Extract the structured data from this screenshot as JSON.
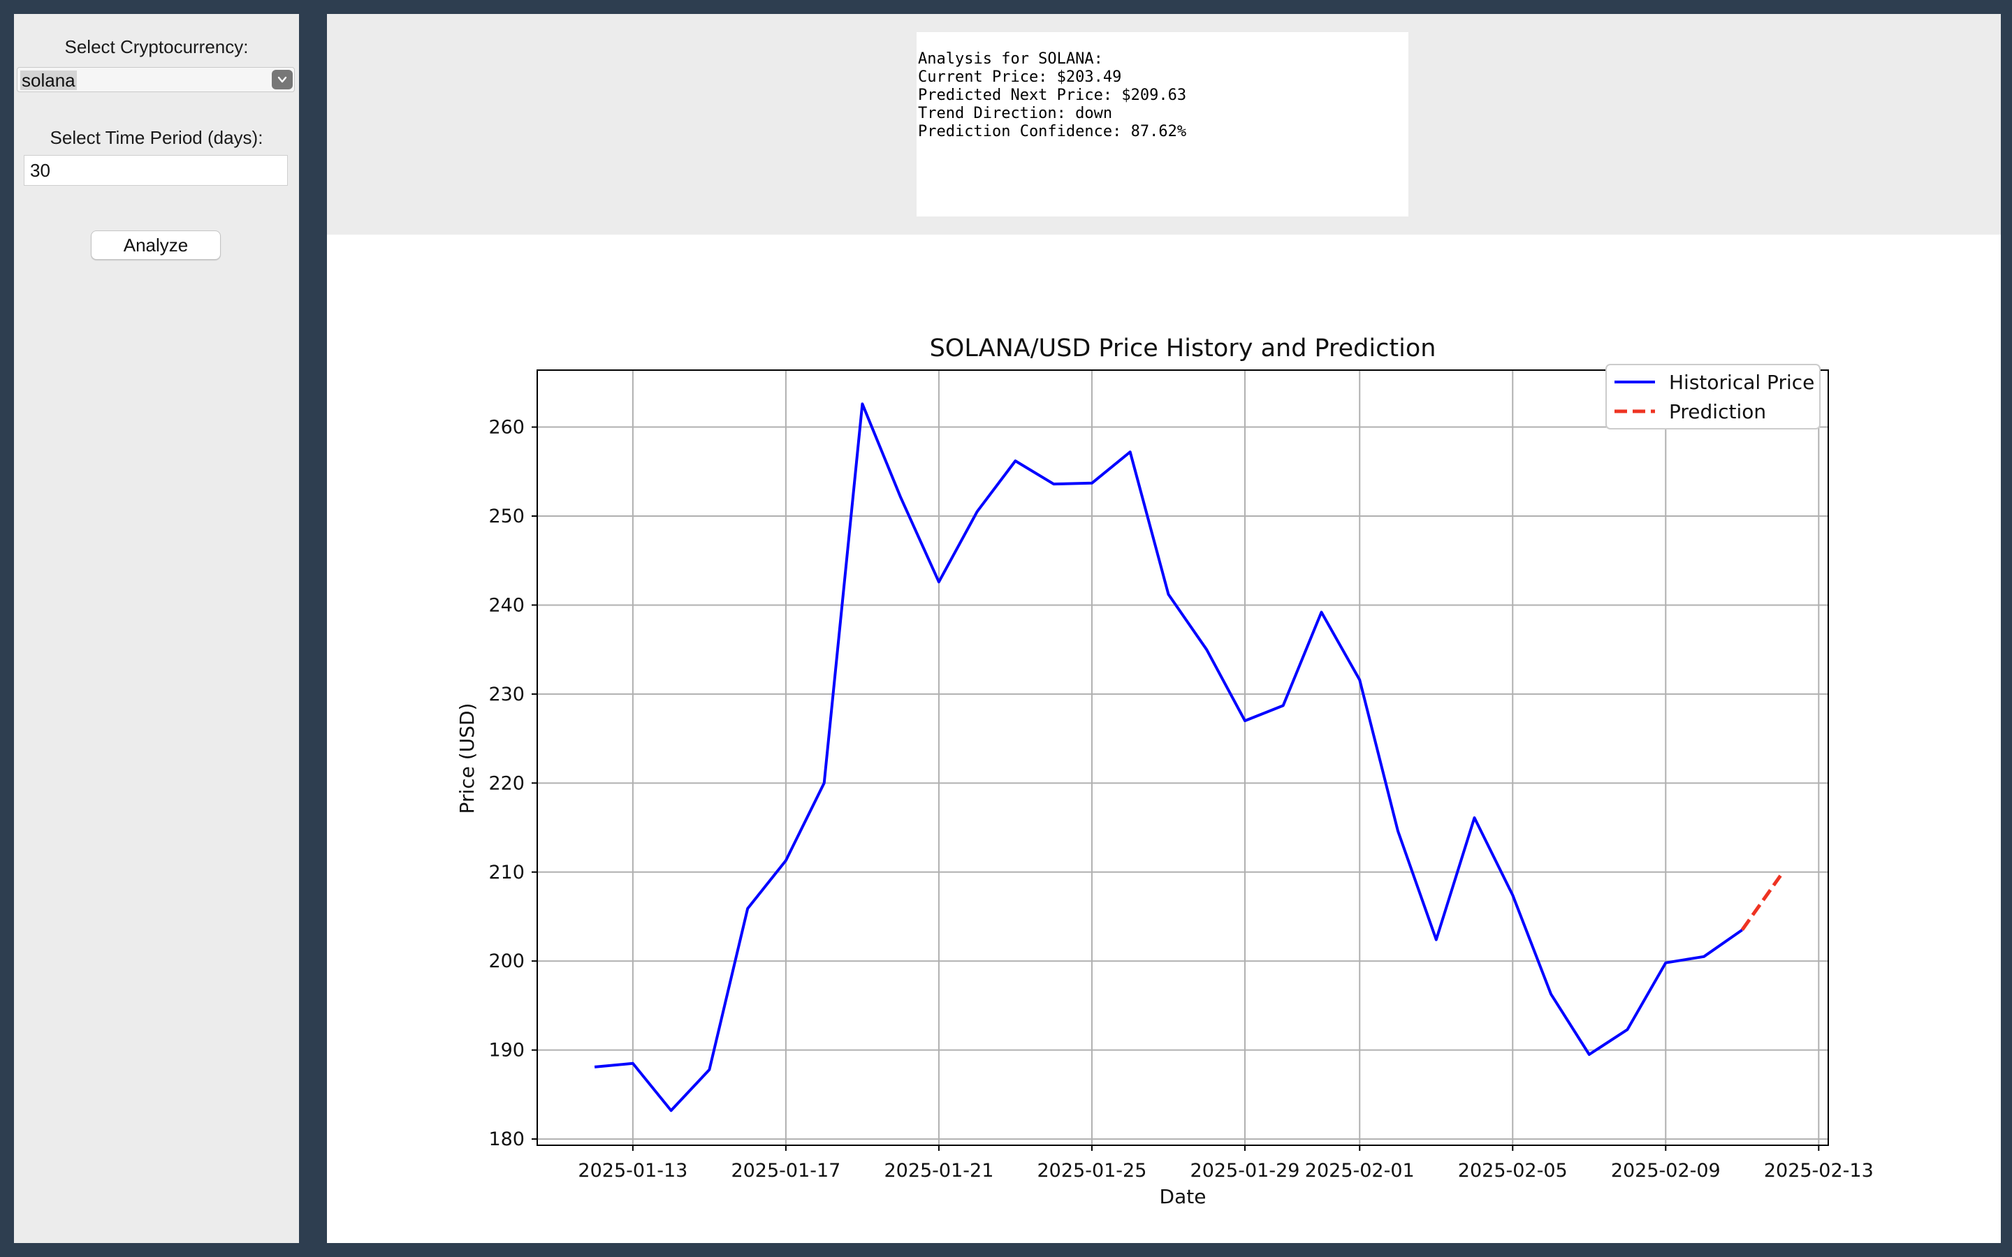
{
  "sidebar": {
    "crypto_label": "Select Cryptocurrency:",
    "crypto_selected": "solana",
    "period_label": "Select Time Period (days):",
    "period_value": "30",
    "analyze_label": "Analyze"
  },
  "analysis": {
    "lines": [
      "Analysis for SOLANA:",
      "Current Price: $203.49",
      "Predicted Next Price: $209.63",
      "Trend Direction: down",
      "Prediction Confidence: 87.62%"
    ]
  },
  "colors": {
    "historical": "#0000ff",
    "prediction": "#ee3322",
    "sidebar_bg": "#ececec",
    "frame_bg": "#2e3e50"
  },
  "chart_data": {
    "type": "line",
    "title": "SOLANA/USD Price History and Prediction",
    "xlabel": "Date",
    "ylabel": "Price (USD)",
    "ylim": [
      179.3,
      266.4
    ],
    "xlim": [
      "2025-01-10T12:00",
      "2025-02-13T06:00"
    ],
    "yticks": [
      180,
      190,
      200,
      210,
      220,
      230,
      240,
      250,
      260
    ],
    "xticks": [
      "2025-01-13",
      "2025-01-17",
      "2025-01-21",
      "2025-01-25",
      "2025-01-29",
      "2025-02-01",
      "2025-02-05",
      "2025-02-09",
      "2025-02-13"
    ],
    "grid": true,
    "legend_position": "top-right",
    "series": [
      {
        "name": "Historical Price",
        "style": "solid",
        "x": [
          "2025-01-12",
          "2025-01-13",
          "2025-01-14",
          "2025-01-15",
          "2025-01-16",
          "2025-01-17",
          "2025-01-18",
          "2025-01-19",
          "2025-01-20",
          "2025-01-21",
          "2025-01-22",
          "2025-01-23",
          "2025-01-24",
          "2025-01-25",
          "2025-01-26",
          "2025-01-27",
          "2025-01-28",
          "2025-01-29",
          "2025-01-30",
          "2025-01-31",
          "2025-02-01",
          "2025-02-02",
          "2025-02-03",
          "2025-02-04",
          "2025-02-05",
          "2025-02-06",
          "2025-02-07",
          "2025-02-08",
          "2025-02-09",
          "2025-02-10",
          "2025-02-11"
        ],
        "values": [
          188.1,
          188.5,
          183.2,
          187.8,
          205.9,
          211.3,
          220.0,
          262.6,
          252.1,
          242.6,
          250.5,
          256.2,
          253.6,
          253.7,
          257.2,
          241.2,
          235.0,
          227.0,
          228.7,
          239.2,
          231.6,
          214.6,
          202.4,
          216.1,
          207.4,
          196.3,
          189.5,
          192.3,
          199.8,
          200.5,
          203.5
        ]
      },
      {
        "name": "Prediction",
        "style": "dashed",
        "x": [
          "2025-02-11",
          "2025-02-12"
        ],
        "values": [
          203.5,
          209.6
        ]
      }
    ]
  }
}
